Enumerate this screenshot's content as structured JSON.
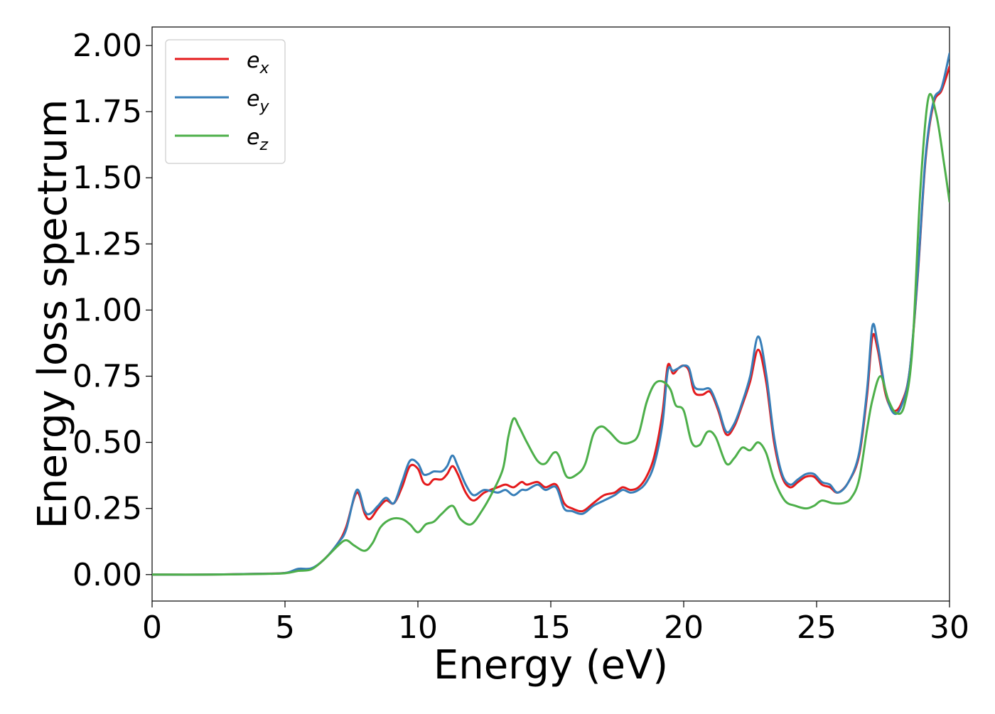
{
  "chart_data": {
    "type": "line",
    "title": "",
    "xlabel": "Energy (eV)",
    "ylabel": "Energy loss spectrum",
    "xlim": [
      0,
      30
    ],
    "ylim": [
      -0.1,
      2.07
    ],
    "xticks": [
      0,
      5,
      10,
      15,
      20,
      25,
      30
    ],
    "xtick_labels": [
      "0",
      "5",
      "10",
      "15",
      "20",
      "25",
      "30"
    ],
    "yticks": [
      0,
      0.25,
      0.5,
      0.75,
      1.0,
      1.25,
      1.5,
      1.75,
      2.0
    ],
    "ytick_labels": [
      "0.00",
      "0.25",
      "0.50",
      "0.75",
      "1.00",
      "1.25",
      "1.50",
      "1.75",
      "2.00"
    ],
    "grid": false,
    "legend_position": "top-left",
    "series": [
      {
        "name": "e_x",
        "legend_base": "e",
        "legend_sub": "x",
        "color": "#e41a1c",
        "points": [
          [
            0,
            0
          ],
          [
            2,
            0
          ],
          [
            4,
            0.003
          ],
          [
            5,
            0.006
          ],
          [
            5.5,
            0.018
          ],
          [
            6,
            0.022
          ],
          [
            6.5,
            0.06
          ],
          [
            7,
            0.12
          ],
          [
            7.3,
            0.18
          ],
          [
            7.7,
            0.31
          ],
          [
            8,
            0.23
          ],
          [
            8.2,
            0.21
          ],
          [
            8.5,
            0.25
          ],
          [
            8.8,
            0.28
          ],
          [
            9.1,
            0.27
          ],
          [
            9.4,
            0.33
          ],
          [
            9.7,
            0.41
          ],
          [
            10,
            0.4
          ],
          [
            10.2,
            0.35
          ],
          [
            10.4,
            0.34
          ],
          [
            10.6,
            0.36
          ],
          [
            10.9,
            0.36
          ],
          [
            11.1,
            0.38
          ],
          [
            11.3,
            0.41
          ],
          [
            11.5,
            0.38
          ],
          [
            11.8,
            0.31
          ],
          [
            12.1,
            0.28
          ],
          [
            12.5,
            0.31
          ],
          [
            13,
            0.33
          ],
          [
            13.3,
            0.34
          ],
          [
            13.6,
            0.33
          ],
          [
            13.9,
            0.35
          ],
          [
            14.1,
            0.34
          ],
          [
            14.5,
            0.35
          ],
          [
            14.8,
            0.33
          ],
          [
            15.2,
            0.34
          ],
          [
            15.5,
            0.27
          ],
          [
            15.8,
            0.25
          ],
          [
            16.2,
            0.24
          ],
          [
            16.6,
            0.27
          ],
          [
            17,
            0.3
          ],
          [
            17.4,
            0.31
          ],
          [
            17.7,
            0.33
          ],
          [
            18,
            0.32
          ],
          [
            18.3,
            0.33
          ],
          [
            18.6,
            0.37
          ],
          [
            18.9,
            0.45
          ],
          [
            19.2,
            0.61
          ],
          [
            19.4,
            0.79
          ],
          [
            19.6,
            0.76
          ],
          [
            19.8,
            0.78
          ],
          [
            20,
            0.79
          ],
          [
            20.2,
            0.77
          ],
          [
            20.4,
            0.69
          ],
          [
            20.7,
            0.68
          ],
          [
            21,
            0.69
          ],
          [
            21.3,
            0.62
          ],
          [
            21.6,
            0.53
          ],
          [
            21.9,
            0.56
          ],
          [
            22.2,
            0.64
          ],
          [
            22.5,
            0.73
          ],
          [
            22.8,
            0.85
          ],
          [
            23.1,
            0.73
          ],
          [
            23.4,
            0.5
          ],
          [
            23.7,
            0.37
          ],
          [
            24,
            0.33
          ],
          [
            24.3,
            0.35
          ],
          [
            24.6,
            0.37
          ],
          [
            24.9,
            0.37
          ],
          [
            25.2,
            0.34
          ],
          [
            25.5,
            0.33
          ],
          [
            25.8,
            0.31
          ],
          [
            26.2,
            0.35
          ],
          [
            26.6,
            0.45
          ],
          [
            26.9,
            0.68
          ],
          [
            27.1,
            0.9
          ],
          [
            27.3,
            0.85
          ],
          [
            27.6,
            0.68
          ],
          [
            27.9,
            0.62
          ],
          [
            28.2,
            0.65
          ],
          [
            28.5,
            0.77
          ],
          [
            28.8,
            1.12
          ],
          [
            29.1,
            1.57
          ],
          [
            29.4,
            1.78
          ],
          [
            29.7,
            1.83
          ],
          [
            30,
            1.92
          ]
        ]
      },
      {
        "name": "e_y",
        "legend_base": "e",
        "legend_sub": "y",
        "color": "#377eb8",
        "points": [
          [
            0,
            0
          ],
          [
            2,
            0
          ],
          [
            4,
            0.003
          ],
          [
            5,
            0.006
          ],
          [
            5.5,
            0.022
          ],
          [
            6,
            0.024
          ],
          [
            6.5,
            0.06
          ],
          [
            7,
            0.12
          ],
          [
            7.3,
            0.17
          ],
          [
            7.7,
            0.32
          ],
          [
            8,
            0.24
          ],
          [
            8.2,
            0.23
          ],
          [
            8.5,
            0.26
          ],
          [
            8.8,
            0.29
          ],
          [
            9.1,
            0.27
          ],
          [
            9.4,
            0.35
          ],
          [
            9.7,
            0.43
          ],
          [
            10,
            0.42
          ],
          [
            10.2,
            0.38
          ],
          [
            10.4,
            0.38
          ],
          [
            10.6,
            0.39
          ],
          [
            10.9,
            0.39
          ],
          [
            11.1,
            0.41
          ],
          [
            11.3,
            0.45
          ],
          [
            11.5,
            0.41
          ],
          [
            11.8,
            0.34
          ],
          [
            12.1,
            0.3
          ],
          [
            12.5,
            0.32
          ],
          [
            13,
            0.31
          ],
          [
            13.3,
            0.32
          ],
          [
            13.6,
            0.3
          ],
          [
            13.9,
            0.32
          ],
          [
            14.1,
            0.32
          ],
          [
            14.5,
            0.34
          ],
          [
            14.8,
            0.32
          ],
          [
            15.2,
            0.33
          ],
          [
            15.5,
            0.25
          ],
          [
            15.8,
            0.24
          ],
          [
            16.2,
            0.23
          ],
          [
            16.6,
            0.26
          ],
          [
            17,
            0.28
          ],
          [
            17.4,
            0.3
          ],
          [
            17.7,
            0.32
          ],
          [
            18,
            0.31
          ],
          [
            18.3,
            0.32
          ],
          [
            18.6,
            0.35
          ],
          [
            18.9,
            0.42
          ],
          [
            19.2,
            0.57
          ],
          [
            19.4,
            0.77
          ],
          [
            19.6,
            0.77
          ],
          [
            19.8,
            0.78
          ],
          [
            20,
            0.79
          ],
          [
            20.2,
            0.78
          ],
          [
            20.4,
            0.71
          ],
          [
            20.7,
            0.7
          ],
          [
            21,
            0.7
          ],
          [
            21.3,
            0.63
          ],
          [
            21.6,
            0.54
          ],
          [
            21.9,
            0.57
          ],
          [
            22.2,
            0.65
          ],
          [
            22.5,
            0.75
          ],
          [
            22.8,
            0.9
          ],
          [
            23.1,
            0.76
          ],
          [
            23.4,
            0.52
          ],
          [
            23.7,
            0.38
          ],
          [
            24,
            0.34
          ],
          [
            24.3,
            0.36
          ],
          [
            24.6,
            0.38
          ],
          [
            24.9,
            0.38
          ],
          [
            25.2,
            0.35
          ],
          [
            25.5,
            0.34
          ],
          [
            25.8,
            0.31
          ],
          [
            26.2,
            0.35
          ],
          [
            26.6,
            0.46
          ],
          [
            26.9,
            0.7
          ],
          [
            27.1,
            0.94
          ],
          [
            27.3,
            0.87
          ],
          [
            27.6,
            0.69
          ],
          [
            27.9,
            0.61
          ],
          [
            28.2,
            0.64
          ],
          [
            28.5,
            0.77
          ],
          [
            28.8,
            1.13
          ],
          [
            29.1,
            1.58
          ],
          [
            29.4,
            1.79
          ],
          [
            29.7,
            1.84
          ],
          [
            30,
            1.97
          ]
        ]
      },
      {
        "name": "e_z",
        "legend_base": "e",
        "legend_sub": "z",
        "color": "#4daf4a",
        "points": [
          [
            0,
            0
          ],
          [
            2,
            0
          ],
          [
            4,
            0.002
          ],
          [
            5,
            0.005
          ],
          [
            5.5,
            0.014
          ],
          [
            6,
            0.02
          ],
          [
            6.5,
            0.06
          ],
          [
            7,
            0.11
          ],
          [
            7.3,
            0.13
          ],
          [
            7.6,
            0.11
          ],
          [
            8,
            0.09
          ],
          [
            8.3,
            0.12
          ],
          [
            8.6,
            0.18
          ],
          [
            9,
            0.21
          ],
          [
            9.4,
            0.21
          ],
          [
            9.7,
            0.19
          ],
          [
            10,
            0.16
          ],
          [
            10.3,
            0.19
          ],
          [
            10.6,
            0.2
          ],
          [
            10.9,
            0.23
          ],
          [
            11.3,
            0.26
          ],
          [
            11.6,
            0.21
          ],
          [
            12,
            0.19
          ],
          [
            12.4,
            0.24
          ],
          [
            12.8,
            0.31
          ],
          [
            13.2,
            0.4
          ],
          [
            13.4,
            0.52
          ],
          [
            13.6,
            0.59
          ],
          [
            13.8,
            0.56
          ],
          [
            14.1,
            0.5
          ],
          [
            14.5,
            0.43
          ],
          [
            14.8,
            0.42
          ],
          [
            15.1,
            0.46
          ],
          [
            15.3,
            0.45
          ],
          [
            15.6,
            0.37
          ],
          [
            16,
            0.38
          ],
          [
            16.3,
            0.42
          ],
          [
            16.6,
            0.53
          ],
          [
            16.9,
            0.56
          ],
          [
            17.2,
            0.54
          ],
          [
            17.6,
            0.5
          ],
          [
            18,
            0.5
          ],
          [
            18.3,
            0.53
          ],
          [
            18.6,
            0.65
          ],
          [
            18.9,
            0.72
          ],
          [
            19.2,
            0.73
          ],
          [
            19.5,
            0.7
          ],
          [
            19.7,
            0.64
          ],
          [
            20,
            0.62
          ],
          [
            20.3,
            0.5
          ],
          [
            20.6,
            0.49
          ],
          [
            20.9,
            0.54
          ],
          [
            21.2,
            0.52
          ],
          [
            21.6,
            0.42
          ],
          [
            21.9,
            0.44
          ],
          [
            22.2,
            0.48
          ],
          [
            22.5,
            0.47
          ],
          [
            22.8,
            0.5
          ],
          [
            23.1,
            0.46
          ],
          [
            23.4,
            0.36
          ],
          [
            23.8,
            0.28
          ],
          [
            24.2,
            0.26
          ],
          [
            24.6,
            0.25
          ],
          [
            24.9,
            0.26
          ],
          [
            25.2,
            0.28
          ],
          [
            25.6,
            0.27
          ],
          [
            26,
            0.27
          ],
          [
            26.3,
            0.29
          ],
          [
            26.6,
            0.36
          ],
          [
            26.9,
            0.55
          ],
          [
            27.1,
            0.66
          ],
          [
            27.4,
            0.75
          ],
          [
            27.7,
            0.66
          ],
          [
            28,
            0.61
          ],
          [
            28.3,
            0.64
          ],
          [
            28.6,
            0.85
          ],
          [
            28.9,
            1.45
          ],
          [
            29.2,
            1.8
          ],
          [
            29.5,
            1.74
          ],
          [
            29.8,
            1.55
          ],
          [
            30,
            1.41
          ]
        ]
      }
    ]
  }
}
